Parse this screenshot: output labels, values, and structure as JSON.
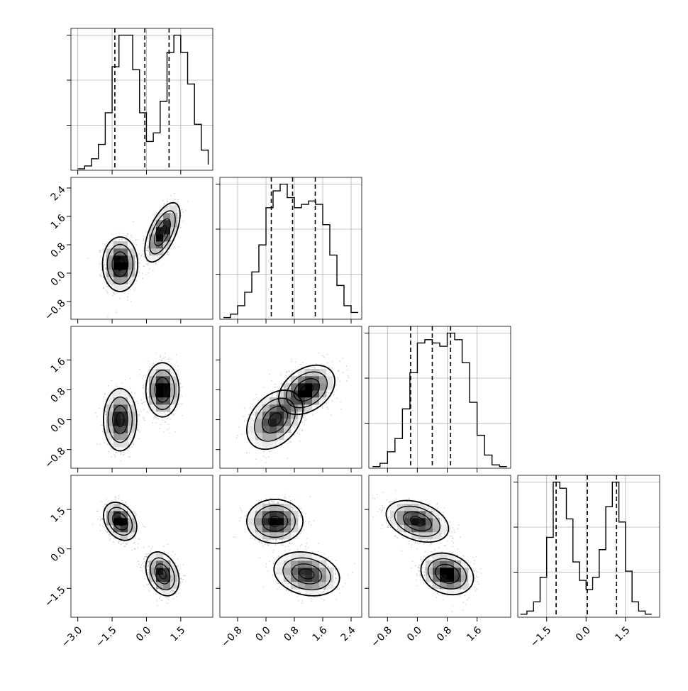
{
  "chart_data": {
    "type": "corner",
    "n_params": 4,
    "title": "",
    "xlabel": "",
    "ylabel": "",
    "grid": true,
    "colors": {
      "line": "#000000",
      "grid": "#b0b0b0",
      "points": "#9a9a9a",
      "frame": "#000000"
    },
    "params": [
      {
        "name": "",
        "range": [
          -3.3,
          2.9
        ],
        "ticks": [
          "-3.0",
          "-1.5",
          "0.0",
          "1.5"
        ],
        "tick_values": [
          -3.0,
          -1.5,
          0.0,
          1.5
        ]
      },
      {
        "name": "",
        "range": [
          -1.3,
          2.7
        ],
        "ticks": [
          "-0.8",
          "0.0",
          "0.8",
          "1.6",
          "2.4"
        ],
        "tick_values": [
          -0.8,
          0.0,
          0.8,
          1.6,
          2.4
        ]
      },
      {
        "name": "",
        "range": [
          -1.3,
          2.5
        ],
        "ticks": [
          "-0.8",
          "0.0",
          "0.8",
          "1.6"
        ],
        "tick_values": [
          -0.8,
          0.0,
          0.8,
          1.6
        ]
      },
      {
        "name": "",
        "range": [
          -2.6,
          2.8
        ],
        "ticks": [
          "-1.5",
          "0.0",
          "1.5"
        ],
        "tick_values": [
          -1.5,
          0.0,
          1.5
        ]
      }
    ],
    "histograms": [
      {
        "param": 0,
        "bin_edges": [
          -3.0,
          -2.7,
          -2.4,
          -2.1,
          -1.8,
          -1.5,
          -1.2,
          -0.9,
          -0.6,
          -0.3,
          0.0,
          0.3,
          0.6,
          0.9,
          1.2,
          1.5,
          1.8,
          2.1,
          2.4,
          2.7
        ],
        "counts": [
          0.5,
          1.5,
          4,
          9,
          20,
          36,
          47,
          47,
          35,
          20,
          10,
          13,
          24,
          41,
          47,
          41,
          30,
          16,
          7,
          2
        ],
        "quantiles": [
          -1.38,
          -0.07,
          0.99
        ]
      },
      {
        "param": 1,
        "bin_edges": [
          -1.2,
          -1.0,
          -0.8,
          -0.6,
          -0.4,
          -0.2,
          0.0,
          0.2,
          0.4,
          0.6,
          0.8,
          1.0,
          1.2,
          1.4,
          1.6,
          1.8,
          2.0,
          2.2,
          2.4,
          2.6
        ],
        "counts": [
          0.5,
          1.5,
          4,
          8,
          14,
          22,
          33,
          38,
          40,
          36,
          33,
          34,
          35,
          34,
          28,
          19,
          10,
          4,
          2
        ],
        "quantiles": [
          0.15,
          0.75,
          1.39
        ]
      },
      {
        "param": 2,
        "bin_edges": [
          -1.2,
          -1.0,
          -0.8,
          -0.6,
          -0.4,
          -0.2,
          0.0,
          0.2,
          0.4,
          0.6,
          0.8,
          1.0,
          1.2,
          1.4,
          1.6,
          1.8,
          2.0,
          2.2,
          2.4
        ],
        "counts": [
          0.5,
          1.5,
          5,
          9,
          18,
          29,
          38,
          39,
          38,
          37,
          41,
          39,
          32,
          20,
          10,
          4,
          1,
          0.5
        ],
        "quantiles": [
          -0.18,
          0.4,
          0.89
        ]
      },
      {
        "param": 3,
        "bin_edges": [
          -2.5,
          -2.25,
          -2.0,
          -1.75,
          -1.5,
          -1.25,
          -1.0,
          -0.75,
          -0.5,
          -0.25,
          0.0,
          0.25,
          0.5,
          0.75,
          1.0,
          1.25,
          1.5,
          1.75,
          2.0,
          2.25,
          2.5
        ],
        "counts": [
          1,
          2,
          5,
          13,
          26,
          44,
          42,
          32,
          18,
          12,
          9,
          13,
          22,
          36,
          44,
          31,
          15,
          5,
          2,
          1
        ],
        "quantiles": [
          -1.14,
          0.05,
          1.16
        ]
      }
    ],
    "joint_modes": [
      {
        "pair": [
          0,
          1
        ],
        "centers": [
          [
            -1.15,
            0.25
          ],
          [
            0.7,
            1.15
          ]
        ],
        "sd": [
          [
            0.35,
            0.35
          ],
          [
            0.35,
            0.38
          ]
        ],
        "rho": [
          0.0,
          0.6
        ]
      },
      {
        "pair": [
          0,
          2
        ],
        "centers": [
          [
            -1.15,
            0.0
          ],
          [
            0.7,
            0.8
          ]
        ],
        "sd": [
          [
            0.33,
            0.38
          ],
          [
            0.33,
            0.33
          ]
        ],
        "rho": [
          0.0,
          0.0
        ]
      },
      {
        "pair": [
          0,
          3
        ],
        "centers": [
          [
            -1.15,
            1.05
          ],
          [
            0.7,
            -0.95
          ]
        ],
        "sd": [
          [
            0.33,
            0.33
          ],
          [
            0.33,
            0.38
          ]
        ],
        "rho": [
          -0.3,
          -0.3
        ]
      },
      {
        "pair": [
          1,
          2
        ],
        "centers": [
          [
            0.25,
            0.0
          ],
          [
            1.15,
            0.8
          ]
        ],
        "sd": [
          [
            0.36,
            0.36
          ],
          [
            0.36,
            0.3
          ]
        ],
        "rho": [
          0.35,
          0.35
        ]
      },
      {
        "pair": [
          1,
          3
        ],
        "centers": [
          [
            0.25,
            1.05
          ],
          [
            1.15,
            -0.95
          ]
        ],
        "sd": [
          [
            0.36,
            0.38
          ],
          [
            0.42,
            0.38
          ]
        ],
        "rho": [
          0.0,
          -0.2
        ]
      },
      {
        "pair": [
          2,
          3
        ],
        "centers": [
          [
            0.0,
            1.05
          ],
          [
            0.8,
            -0.95
          ]
        ],
        "sd": [
          [
            0.38,
            0.36
          ],
          [
            0.32,
            0.36
          ]
        ],
        "rho": [
          -0.35,
          -0.2
        ]
      }
    ]
  }
}
